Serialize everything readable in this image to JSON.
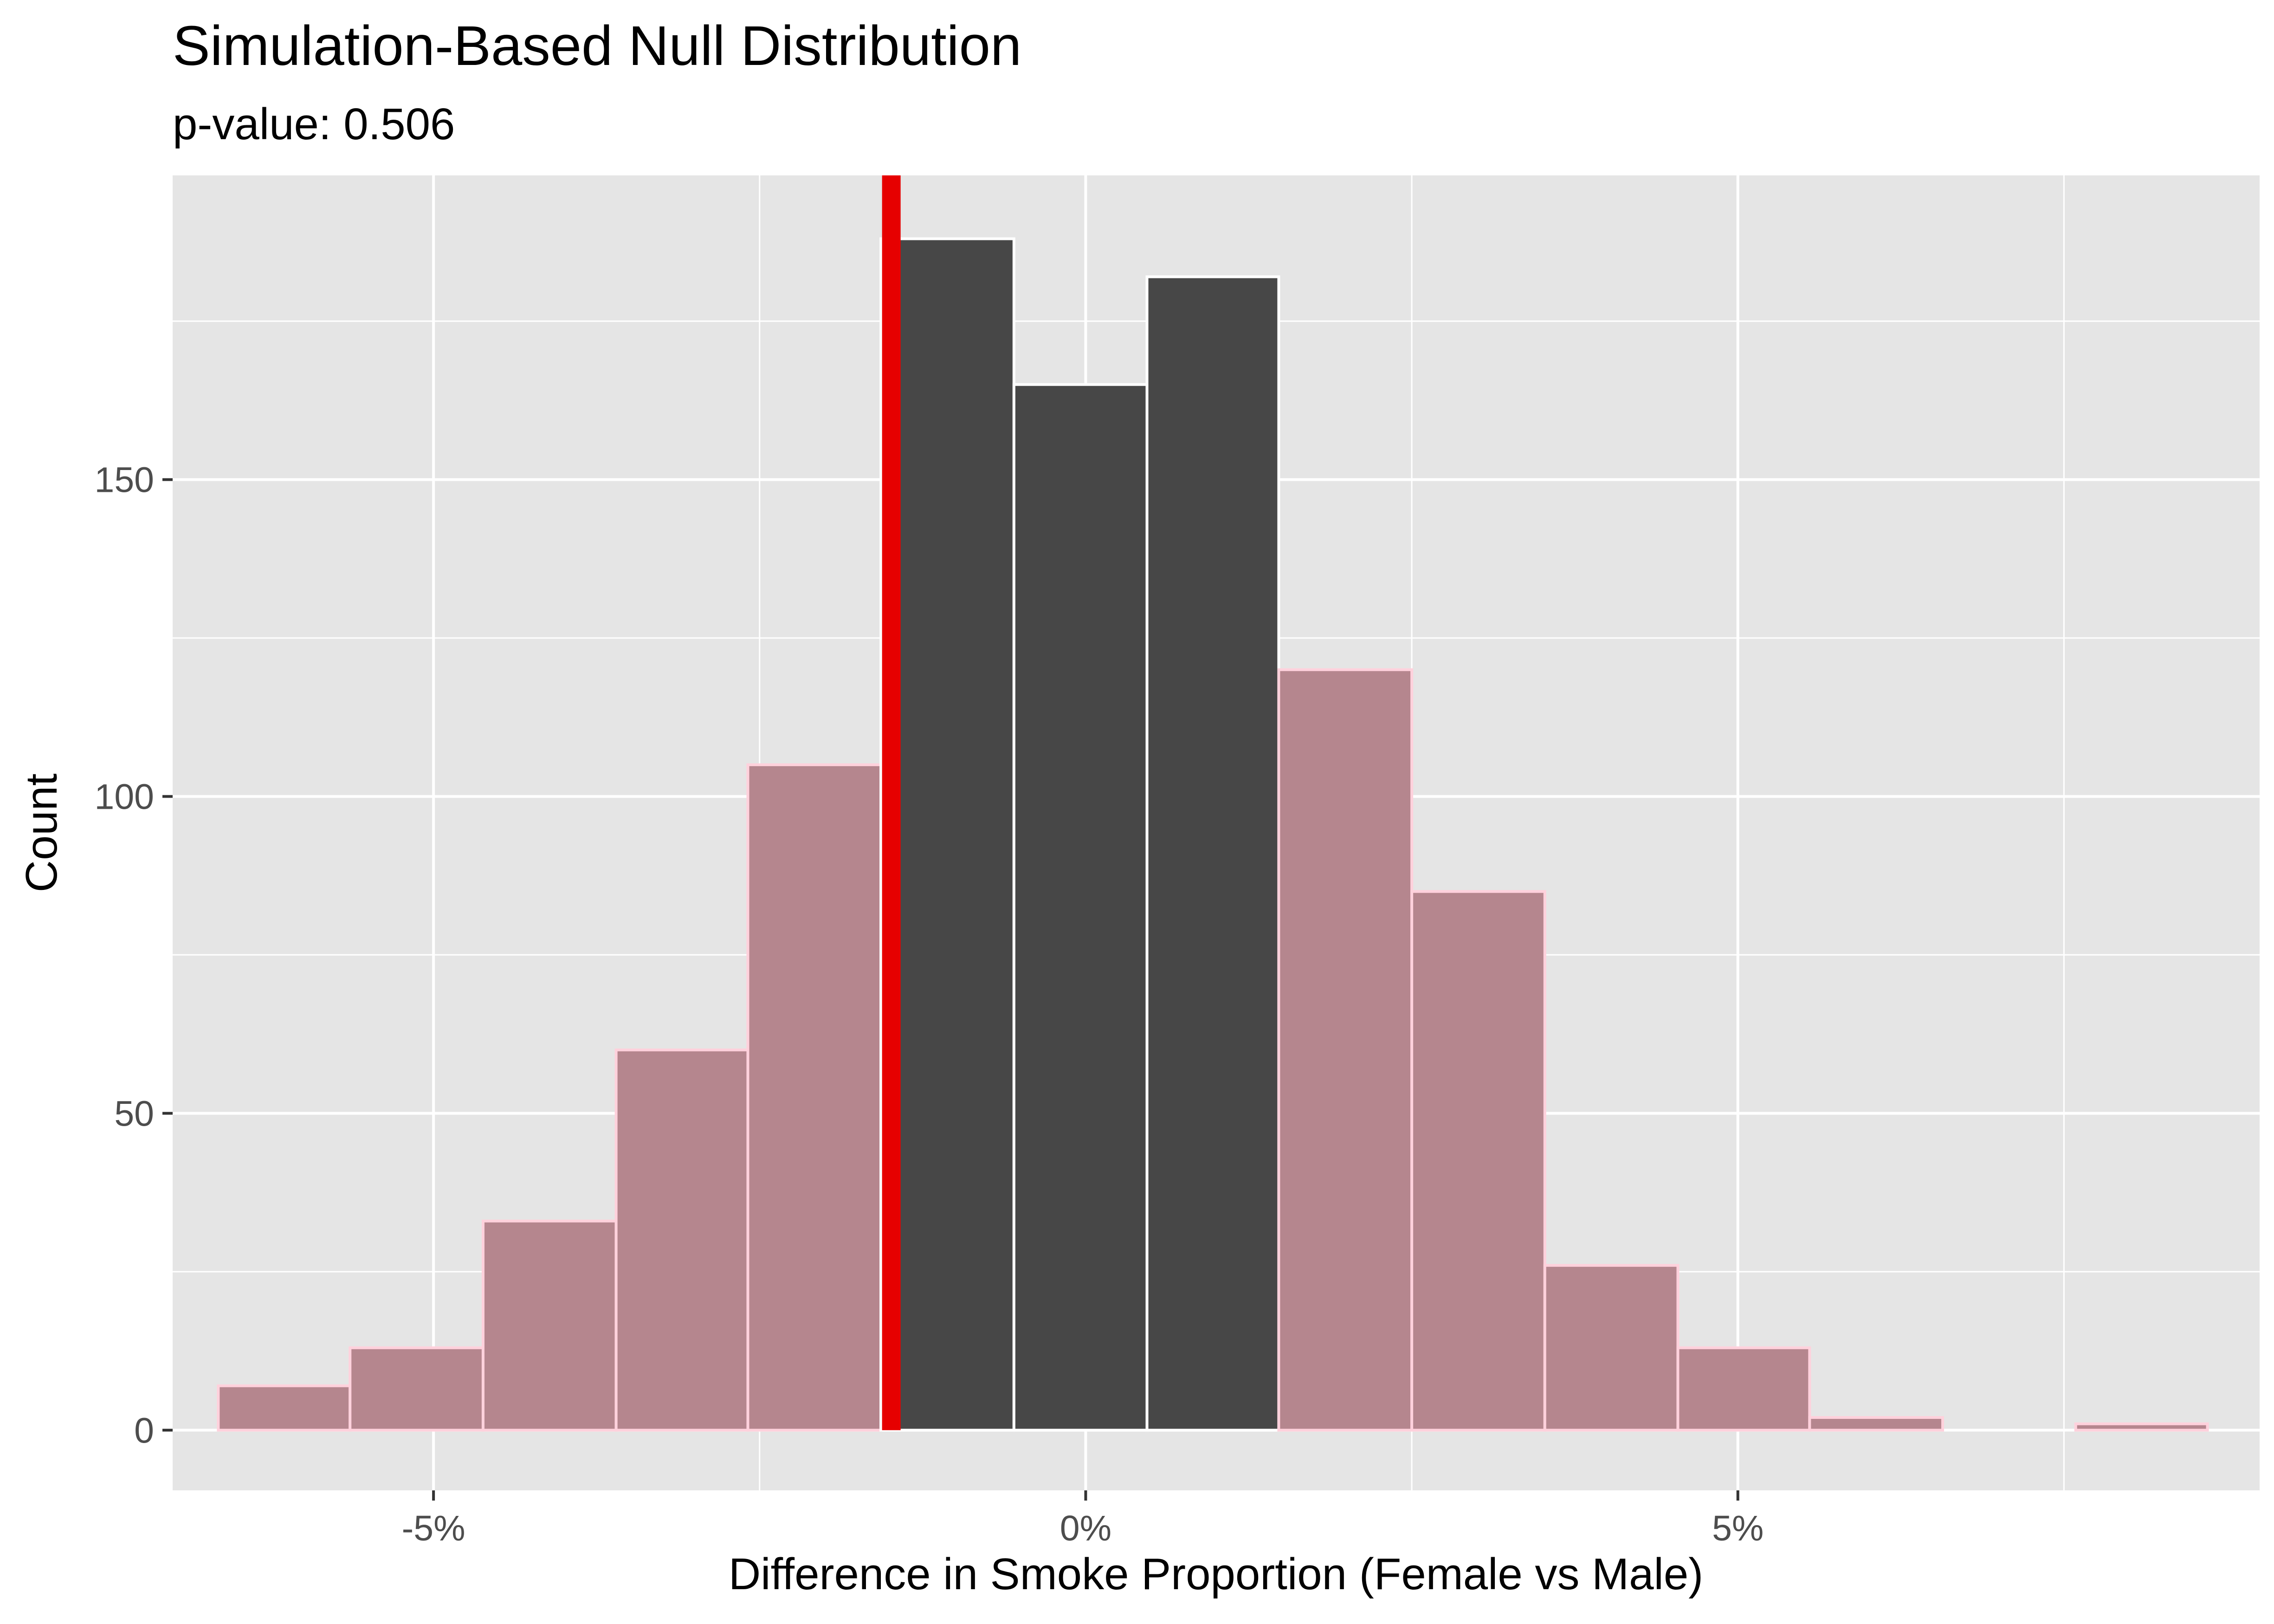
{
  "chart_data": {
    "type": "bar",
    "title": "Simulation-Based Null Distribution",
    "subtitle": "p-value: 0.506",
    "xlabel": "Difference in Smoke Proportion (Female vs Male)",
    "ylabel": "Count",
    "xlim": [
      -7.0,
      9.0
    ],
    "ylim": [
      -9.5,
      198
    ],
    "x_ticks": [
      {
        "value": -5,
        "label": "-5%"
      },
      {
        "value": 0,
        "label": "0%"
      },
      {
        "value": 5,
        "label": "5%"
      }
    ],
    "x_minor_gridlines": [
      -2.5,
      2.5,
      7.5
    ],
    "y_ticks": [
      {
        "value": 0,
        "label": "0"
      },
      {
        "value": 50,
        "label": "50"
      },
      {
        "value": 100,
        "label": "100"
      },
      {
        "value": 150,
        "label": "150"
      }
    ],
    "y_minor_gridlines": [
      25,
      75,
      125,
      175
    ],
    "bins": [
      {
        "x0": -6.65,
        "x1": -5.64,
        "count": 7,
        "shaded": true
      },
      {
        "x0": -5.64,
        "x1": -4.62,
        "count": 13,
        "shaded": true
      },
      {
        "x0": -4.62,
        "x1": -3.6,
        "count": 33,
        "shaded": true
      },
      {
        "x0": -3.6,
        "x1": -2.59,
        "count": 60,
        "shaded": true
      },
      {
        "x0": -2.59,
        "x1": -1.57,
        "count": 105,
        "shaded": true
      },
      {
        "x0": -1.57,
        "x1": -0.55,
        "count": 188,
        "shaded": false
      },
      {
        "x0": -0.55,
        "x1": 0.47,
        "count": 165,
        "shaded": false
      },
      {
        "x0": 0.47,
        "x1": 1.48,
        "count": 182,
        "shaded": false
      },
      {
        "x0": 1.48,
        "x1": 2.5,
        "count": 120,
        "shaded": true
      },
      {
        "x0": 2.5,
        "x1": 3.52,
        "count": 85,
        "shaded": true
      },
      {
        "x0": 3.52,
        "x1": 4.54,
        "count": 26,
        "shaded": true
      },
      {
        "x0": 4.54,
        "x1": 5.55,
        "count": 13,
        "shaded": true
      },
      {
        "x0": 5.55,
        "x1": 6.57,
        "count": 2,
        "shaded": true
      },
      {
        "x0": 6.57,
        "x1": 7.59,
        "count": 0,
        "shaded": true
      },
      {
        "x0": 7.59,
        "x1": 8.6,
        "count": 1,
        "shaded": true
      }
    ],
    "observed_statistic": -1.49,
    "shade_direction": "both",
    "grid": true
  },
  "colors": {
    "panel_background": "#E5E5E5",
    "gridline": "#FFFFFF",
    "bar_fill": "#474747",
    "bar_outline": "#FFFFFF",
    "shade_fill": "#B5868E",
    "shade_outline": "#FFD1DC",
    "observed_line": "#E60000",
    "tick_label": "#4D4D4D",
    "tick_mark": "#333333",
    "text": "#000000"
  }
}
